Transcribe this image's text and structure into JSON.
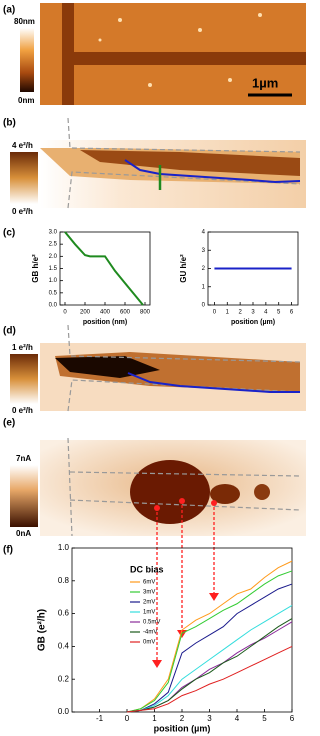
{
  "panel_labels": [
    "(a)",
    "(b)",
    "(c)",
    "(d)",
    "(e)",
    "(f)"
  ],
  "panel_a": {
    "colorbar_max": "80nm",
    "colorbar_min": "0nm",
    "scale_bar": "1µm"
  },
  "panel_b": {
    "colorbar_max": "4 e²/h",
    "colorbar_min": "0 e²/h"
  },
  "panel_d": {
    "colorbar_max": "1 e²/h",
    "colorbar_min": "0 e²/h"
  },
  "panel_e": {
    "colorbar_max": "7nA",
    "colorbar_min": "0nA"
  },
  "chart_data": [
    {
      "type": "line",
      "x_label": "position (nm)",
      "y_label": "GB h/e²",
      "x": [
        0,
        100,
        200,
        250,
        400,
        500,
        600,
        700,
        780
      ],
      "values": [
        3,
        2.5,
        2.05,
        2,
        2,
        1.4,
        0.9,
        0.4,
        0
      ],
      "color": "#1f8a1f",
      "xlim": [
        -50,
        850
      ],
      "ylim": [
        0,
        3
      ],
      "xticks": [
        0,
        200,
        400,
        600,
        800
      ],
      "yticks": [
        {
          "value": 0,
          "label": "0.0"
        },
        {
          "value": 0.5,
          "label": "0.5"
        },
        {
          "value": 1,
          "label": "1.0"
        },
        {
          "value": 1.5,
          "label": "1.5"
        },
        {
          "value": 2,
          "label": "2.0"
        },
        {
          "value": 2.5,
          "label": "2.5"
        },
        {
          "value": 3,
          "label": "3.0"
        }
      ]
    },
    {
      "type": "line",
      "x_label": "position (µm)",
      "y_label": "GU h/e²",
      "x": [
        0,
        1,
        2,
        3,
        4,
        5,
        6
      ],
      "values": [
        2,
        2,
        2,
        2,
        2,
        2,
        2
      ],
      "color": "#1a22c8",
      "xlim": [
        -0.5,
        6.5
      ],
      "ylim": [
        0,
        4
      ],
      "xticks": [
        0,
        1,
        2,
        3,
        4,
        5,
        6
      ],
      "yticks": [
        0,
        1,
        2,
        3,
        4
      ]
    },
    {
      "type": "line",
      "x_label": "position (µm)",
      "y_label": "GB (e²/h)",
      "legend_title": "DC bias",
      "legend": "upper left",
      "x": [
        0,
        0.5,
        1,
        1.5,
        2,
        2.5,
        3,
        3.5,
        4,
        4.5,
        5,
        5.5,
        6
      ],
      "series": [
        {
          "name": "6mV",
          "color": "#ff9a1a",
          "values": [
            0,
            0.02,
            0.08,
            0.2,
            0.5,
            0.56,
            0.6,
            0.66,
            0.72,
            0.75,
            0.82,
            0.88,
            0.92
          ]
        },
        {
          "name": "3mV",
          "color": "#33cc33",
          "values": [
            0,
            0.02,
            0.07,
            0.18,
            0.48,
            0.52,
            0.57,
            0.62,
            0.66,
            0.72,
            0.78,
            0.83,
            0.86
          ]
        },
        {
          "name": "2mV",
          "color": "#1a1a8c",
          "values": [
            0,
            0.01,
            0.05,
            0.12,
            0.36,
            0.42,
            0.47,
            0.52,
            0.6,
            0.65,
            0.7,
            0.75,
            0.78
          ]
        },
        {
          "name": "1mV",
          "color": "#33dddd",
          "values": [
            0,
            0.01,
            0.04,
            0.1,
            0.2,
            0.26,
            0.32,
            0.38,
            0.44,
            0.5,
            0.55,
            0.6,
            0.65
          ]
        },
        {
          "name": "0.5mV",
          "color": "#8a2a9a",
          "values": [
            0,
            0.01,
            0.03,
            0.07,
            0.15,
            0.2,
            0.26,
            0.3,
            0.36,
            0.41,
            0.45,
            0.5,
            0.55
          ]
        },
        {
          "name": "-4mV",
          "color": "#1a5a1a",
          "values": [
            0,
            0.01,
            0.03,
            0.07,
            0.14,
            0.2,
            0.24,
            0.3,
            0.34,
            0.4,
            0.46,
            0.52,
            0.57
          ]
        },
        {
          "name": "0mV",
          "color": "#e02020",
          "values": [
            0,
            0.01,
            0.02,
            0.05,
            0.1,
            0.13,
            0.17,
            0.2,
            0.24,
            0.28,
            0.32,
            0.36,
            0.4
          ]
        }
      ],
      "xlim": [
        -2,
        6
      ],
      "ylim": [
        0,
        1
      ],
      "xticks": [
        -1,
        0,
        1,
        2,
        3,
        4,
        5,
        6
      ],
      "yticks": [
        {
          "value": 0,
          "label": "0.0"
        },
        {
          "value": 0.2,
          "label": "0.2"
        },
        {
          "value": 0.4,
          "label": "0.4"
        },
        {
          "value": 0.6,
          "label": "0.6"
        },
        {
          "value": 0.8,
          "label": "0.8"
        },
        {
          "value": 1,
          "label": "1.0"
        }
      ]
    }
  ]
}
